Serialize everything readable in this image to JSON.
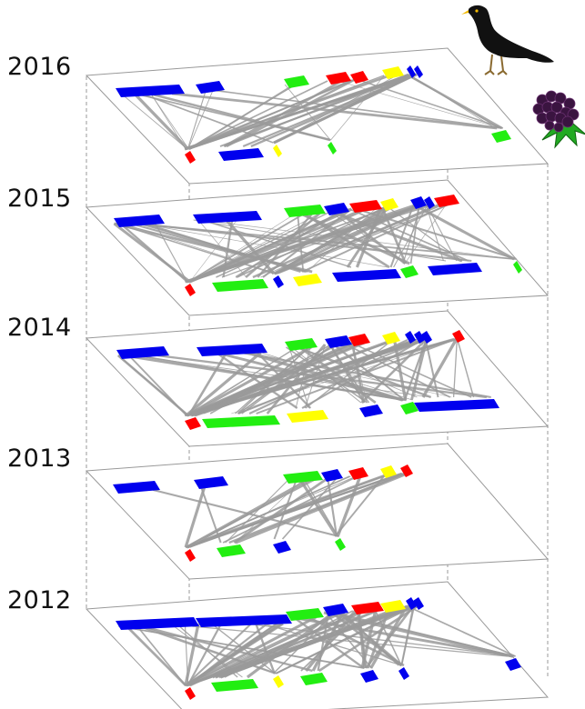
{
  "layers": [
    {
      "year": "2016"
    },
    {
      "year": "2015"
    },
    {
      "year": "2014"
    },
    {
      "year": "2013"
    },
    {
      "year": "2012"
    }
  ],
  "colors": {
    "blue": "#0000ee",
    "green": "#22ee11",
    "red": "#ff0000",
    "yellow": "#ffff00",
    "edge": "#9a9a9a",
    "frame": "#999999"
  },
  "icons": {
    "top": "blackbird-icon",
    "bottom": "blackberry-icon"
  }
}
